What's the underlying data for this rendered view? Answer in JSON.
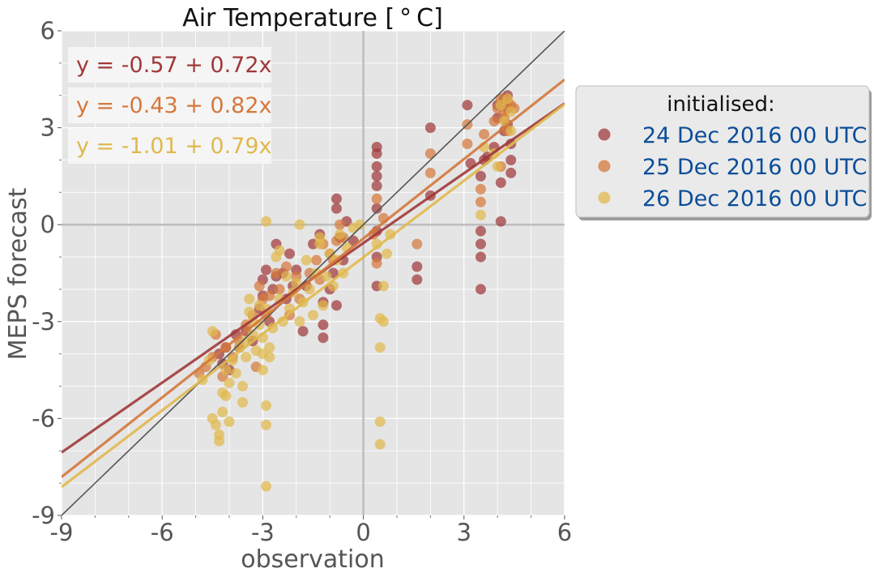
{
  "chart_data": {
    "type": "scatter",
    "title": "Air Temperature [$^\\circ$C]",
    "title_display": "Air Temperature [ ° C]",
    "xlabel": "observation",
    "ylabel": "MEPS forecast",
    "xlim": [
      -9,
      6
    ],
    "ylim": [
      -9,
      6
    ],
    "xticks": [
      -9,
      -6,
      -3,
      0,
      3,
      6
    ],
    "yticks": [
      -9,
      -6,
      -3,
      0,
      3,
      6
    ],
    "xtick_labels": [
      "-9",
      "-6",
      "-3",
      "0",
      "3",
      "6"
    ],
    "ytick_labels": [
      "-9",
      "-6",
      "-3",
      "0",
      "3",
      "6"
    ],
    "grid": true,
    "reference_line": "y = x",
    "legend": {
      "title": "initialised:",
      "placement": "outside right",
      "entries": [
        "24 Dec 2016 00 UTC",
        "25 Dec 2016 00 UTC",
        "26 Dec 2016 00 UTC"
      ]
    },
    "series": [
      {
        "name": "24 Dec 2016 00 UTC",
        "color": "#a0393a",
        "fit": {
          "intercept": -0.57,
          "slope": 0.72,
          "label": "y = -0.57 + 0.72x"
        },
        "points": [
          [
            -4.3,
            -4.0
          ],
          [
            -4.2,
            -4.3
          ],
          [
            -4.1,
            -3.8
          ],
          [
            -4.0,
            -4.5
          ],
          [
            -3.8,
            -3.4
          ],
          [
            -3.7,
            -3.8
          ],
          [
            -3.5,
            -3.3
          ],
          [
            -3.3,
            -3.6
          ],
          [
            -3.1,
            -2.6
          ],
          [
            -3.0,
            -2.2
          ],
          [
            -3.0,
            -1.7
          ],
          [
            -2.9,
            -1.4
          ],
          [
            -2.8,
            -3.0
          ],
          [
            -2.7,
            -2.0
          ],
          [
            -2.6,
            -1.6
          ],
          [
            -2.6,
            -0.6
          ],
          [
            -2.4,
            -1.5
          ],
          [
            -2.3,
            -2.3
          ],
          [
            -2.2,
            -0.9
          ],
          [
            -2.1,
            -1.9
          ],
          [
            -2.0,
            -1.4
          ],
          [
            -1.8,
            -3.3
          ],
          [
            -1.7,
            -1.9
          ],
          [
            -1.5,
            -0.6
          ],
          [
            -1.3,
            -0.3
          ],
          [
            -1.2,
            -2.4
          ],
          [
            -1.2,
            -3.1
          ],
          [
            -1.2,
            -3.5
          ],
          [
            -1.0,
            -2.0
          ],
          [
            -0.9,
            -1.5
          ],
          [
            -0.8,
            -2.5
          ],
          [
            -0.8,
            0.8
          ],
          [
            -0.8,
            0.5
          ],
          [
            -0.7,
            -0.4
          ],
          [
            -0.6,
            -1.1
          ],
          [
            -0.5,
            0.1
          ],
          [
            -0.3,
            -0.5
          ],
          [
            0.4,
            2.4
          ],
          [
            0.4,
            2.2
          ],
          [
            0.4,
            1.8
          ],
          [
            0.4,
            1.5
          ],
          [
            0.4,
            1.2
          ],
          [
            0.4,
            0.5
          ],
          [
            0.4,
            -0.2
          ],
          [
            0.4,
            -1.0
          ],
          [
            0.4,
            -1.9
          ],
          [
            1.6,
            -1.3
          ],
          [
            1.6,
            -1.7
          ],
          [
            2.0,
            3.0
          ],
          [
            2.0,
            0.9
          ],
          [
            3.1,
            3.7
          ],
          [
            3.2,
            1.9
          ],
          [
            3.5,
            1.5
          ],
          [
            3.5,
            -0.2
          ],
          [
            3.5,
            -0.6
          ],
          [
            3.5,
            -1.0
          ],
          [
            3.5,
            -2.0
          ],
          [
            3.6,
            2.0
          ],
          [
            3.7,
            2.1
          ],
          [
            3.9,
            2.4
          ],
          [
            4.0,
            3.3
          ],
          [
            4.0,
            3.7
          ],
          [
            4.1,
            1.3
          ],
          [
            4.1,
            0.1
          ],
          [
            4.2,
            3.9
          ],
          [
            4.2,
            2.9
          ],
          [
            4.3,
            3.6
          ],
          [
            4.3,
            4.0
          ],
          [
            4.3,
            3.1
          ],
          [
            4.4,
            2.5
          ],
          [
            4.4,
            1.6
          ],
          [
            4.4,
            2.0
          ]
        ]
      },
      {
        "name": "25 Dec 2016 00 UTC",
        "color": "#d4783c",
        "fit": {
          "intercept": -0.43,
          "slope": 0.82,
          "label": "y = -0.43 + 0.82x"
        },
        "points": [
          [
            -4.9,
            -4.6
          ],
          [
            -4.7,
            -4.4
          ],
          [
            -4.5,
            -4.1
          ],
          [
            -4.4,
            -3.4
          ],
          [
            -4.2,
            -4.7
          ],
          [
            -4.1,
            -3.8
          ],
          [
            -3.9,
            -4.1
          ],
          [
            -3.7,
            -3.6
          ],
          [
            -3.5,
            -3.1
          ],
          [
            -3.3,
            -2.8
          ],
          [
            -3.2,
            -4.4
          ],
          [
            -3.1,
            -1.9
          ],
          [
            -3.0,
            -2.3
          ],
          [
            -2.9,
            -2.8
          ],
          [
            -2.8,
            -2.2
          ],
          [
            -2.6,
            -1.5
          ],
          [
            -2.5,
            -2.0
          ],
          [
            -2.3,
            -1.3
          ],
          [
            -2.2,
            -2.8
          ],
          [
            -2.0,
            -1.6
          ],
          [
            -1.9,
            -2.3
          ],
          [
            -1.6,
            -1.5
          ],
          [
            -1.4,
            -1.1
          ],
          [
            -1.3,
            -1.7
          ],
          [
            -1.2,
            -0.6
          ],
          [
            -1.0,
            -0.9
          ],
          [
            -0.9,
            -1.1
          ],
          [
            -0.8,
            -0.5
          ],
          [
            -0.7,
            0.0
          ],
          [
            -0.6,
            -0.4
          ],
          [
            0.3,
            -0.3
          ],
          [
            0.4,
            0.8
          ],
          [
            0.4,
            -1.2
          ],
          [
            0.6,
            0.2
          ],
          [
            1.6,
            -0.6
          ],
          [
            2.0,
            2.2
          ],
          [
            2.0,
            1.6
          ],
          [
            3.1,
            3.1
          ],
          [
            3.1,
            2.5
          ],
          [
            3.5,
            1.1
          ],
          [
            3.5,
            0.7
          ],
          [
            3.6,
            2.8
          ],
          [
            3.9,
            3.2
          ],
          [
            4.0,
            3.6
          ],
          [
            4.1,
            3.9
          ],
          [
            4.1,
            1.8
          ],
          [
            4.2,
            3.5
          ],
          [
            4.3,
            3.8
          ],
          [
            4.4,
            3.7
          ],
          [
            4.5,
            3.6
          ],
          [
            4.2,
            3.3
          ],
          [
            4.3,
            2.9
          ]
        ]
      },
      {
        "name": "26 Dec 2016 00 UTC",
        "color": "#e0b84c",
        "fit": {
          "intercept": -1.01,
          "slope": 0.79,
          "label": "y = -1.01 + 0.79x"
        },
        "points": [
          [
            -4.8,
            -4.8
          ],
          [
            -4.6,
            -4.2
          ],
          [
            -4.5,
            -3.3
          ],
          [
            -4.5,
            -6.0
          ],
          [
            -4.4,
            -6.2
          ],
          [
            -4.3,
            -6.5
          ],
          [
            -4.3,
            -6.7
          ],
          [
            -4.2,
            -5.2
          ],
          [
            -4.2,
            -5.8
          ],
          [
            -4.1,
            -4.5
          ],
          [
            -4.1,
            -5.3
          ],
          [
            -4.0,
            -4.9
          ],
          [
            -4.0,
            -6.1
          ],
          [
            -3.9,
            -4.2
          ],
          [
            -3.8,
            -4.6
          ],
          [
            -3.7,
            -3.8
          ],
          [
            -3.6,
            -5.0
          ],
          [
            -3.6,
            -5.5
          ],
          [
            -3.5,
            -4.1
          ],
          [
            -3.5,
            -3.6
          ],
          [
            -3.4,
            -2.7
          ],
          [
            -3.4,
            -2.3
          ],
          [
            -3.3,
            -3.0
          ],
          [
            -3.3,
            -3.4
          ],
          [
            -3.2,
            -3.9
          ],
          [
            -3.1,
            -3.1
          ],
          [
            -3.1,
            -2.5
          ],
          [
            -3.0,
            -4.0
          ],
          [
            -3.0,
            -3.5
          ],
          [
            -2.9,
            -2.6
          ],
          [
            -2.8,
            -3.8
          ],
          [
            -2.8,
            -4.1
          ],
          [
            -2.7,
            -3.2
          ],
          [
            -2.6,
            -1.0
          ],
          [
            -2.5,
            -2.3
          ],
          [
            -2.5,
            -0.8
          ],
          [
            -2.4,
            -3.0
          ],
          [
            -2.3,
            -1.6
          ],
          [
            -2.2,
            -2.6
          ],
          [
            -2.1,
            -2.1
          ],
          [
            -2.0,
            -1.8
          ],
          [
            -1.9,
            -3.0
          ],
          [
            -1.8,
            -2.4
          ],
          [
            -1.7,
            -1.1
          ],
          [
            -1.6,
            -2.0
          ],
          [
            -1.5,
            -2.8
          ],
          [
            -1.4,
            -1.5
          ],
          [
            -1.3,
            -0.4
          ],
          [
            -1.2,
            -2.5
          ],
          [
            -1.1,
            -1.6
          ],
          [
            -1.0,
            -0.9
          ],
          [
            -0.9,
            -1.9
          ],
          [
            -0.8,
            -1.1
          ],
          [
            -0.7,
            -0.3
          ],
          [
            -0.6,
            -1.5
          ],
          [
            -0.5,
            -0.7
          ],
          [
            -0.3,
            -0.1
          ],
          [
            -0.1,
            0.0
          ],
          [
            0.4,
            -0.6
          ],
          [
            0.5,
            -2.9
          ],
          [
            0.5,
            -3.8
          ],
          [
            0.5,
            -6.1
          ],
          [
            0.5,
            -6.8
          ],
          [
            0.6,
            -3.0
          ],
          [
            0.6,
            -1.9
          ],
          [
            0.7,
            -0.9
          ],
          [
            0.8,
            -0.3
          ],
          [
            -2.9,
            -5.6
          ],
          [
            -2.9,
            -6.2
          ],
          [
            -2.9,
            -8.1
          ],
          [
            -2.9,
            0.1
          ],
          [
            -3.0,
            -4.5
          ],
          [
            3.5,
            0.3
          ],
          [
            3.6,
            2.4
          ],
          [
            3.9,
            2.2
          ],
          [
            4.0,
            1.8
          ],
          [
            4.1,
            3.7
          ],
          [
            4.2,
            3.2
          ],
          [
            4.3,
            3.9
          ],
          [
            4.4,
            3.5
          ],
          [
            4.4,
            2.9
          ],
          [
            -1.9,
            0.0
          ],
          [
            -1.3,
            -0.6
          ]
        ]
      }
    ]
  }
}
